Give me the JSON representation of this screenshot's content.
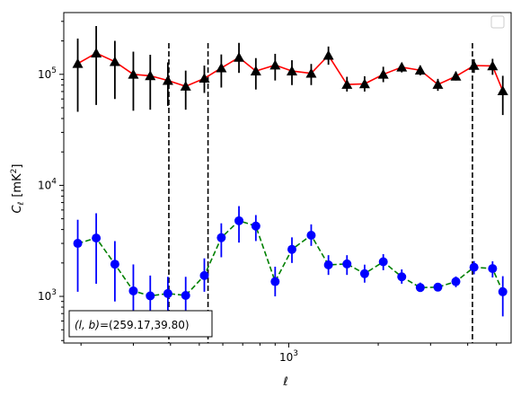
{
  "chart_data": {
    "type": "scatter",
    "xscale": "log",
    "yscale": "log",
    "xlim": [
      175,
      5600
    ],
    "ylim": [
      380,
      360000
    ],
    "xlabel": "ℓ",
    "ylabel": "Cℓ [mK²]",
    "ylabel_main": "C",
    "ylabel_sub": "ℓ",
    "ylabel_units": "[mK",
    "ylabel_sup": "2",
    "ylabel_close": "]",
    "x_tick_labels": [
      {
        "value": 1000,
        "base": "10",
        "exp": "3"
      }
    ],
    "y_tick_labels": [
      {
        "value": 1000,
        "base": "10",
        "exp": "3"
      },
      {
        "value": 10000,
        "base": "10",
        "exp": "4"
      },
      {
        "value": 100000,
        "base": "10",
        "exp": "5"
      }
    ],
    "grid": false,
    "legend": {
      "placement": "top-right",
      "entries": []
    },
    "annotation": {
      "text": "(l, b)=(259.17,39.80)",
      "lb": "(l, b)",
      "values": "=(259.17,39.80)",
      "placement": "bottom-left"
    },
    "vertical_lines": [
      {
        "x": 395,
        "color": "#000000",
        "style": "dashed"
      },
      {
        "x": 535,
        "color": "#000000",
        "style": "dashed"
      },
      {
        "x": 4150,
        "color": "#000000",
        "style": "dashed"
      }
    ],
    "series": [
      {
        "marker": "triangle",
        "color": "#000000",
        "line_color": "#ff0000",
        "line_style": "solid",
        "x": [
          195,
          225,
          260,
          300,
          342,
          392,
          450,
          520,
          593,
          680,
          775,
          900,
          1025,
          1190,
          1360,
          1570,
          1800,
          2080,
          2400,
          2770,
          3175,
          3650,
          4200,
          4850,
          5250
        ],
        "y": [
          125000,
          155000,
          130000,
          100000,
          97000,
          88000,
          78000,
          92000,
          114000,
          142000,
          107000,
          121000,
          107000,
          102000,
          148000,
          81000,
          82000,
          100000,
          116000,
          109000,
          81000,
          96000,
          120000,
          119000,
          71000
        ],
        "y_low": [
          46000,
          53000,
          60000,
          47000,
          48000,
          52000,
          48000,
          68000,
          76000,
          103000,
          73000,
          88000,
          80000,
          80000,
          122000,
          70000,
          70000,
          85000,
          104000,
          98000,
          71000,
          88000,
          103000,
          99000,
          43000
        ],
        "y_high": [
          210000,
          272000,
          200000,
          160000,
          150000,
          128000,
          108000,
          120000,
          151000,
          192000,
          140000,
          153000,
          134000,
          124000,
          178000,
          95000,
          96000,
          117000,
          127000,
          120000,
          91000,
          106000,
          137000,
          138000,
          97000
        ]
      },
      {
        "marker": "circle",
        "color": "#0000ff",
        "line_color": "#008000",
        "line_style": "dashed",
        "x": [
          195,
          225,
          260,
          300,
          342,
          392,
          450,
          520,
          593,
          680,
          775,
          900,
          1025,
          1190,
          1360,
          1570,
          1800,
          2080,
          2400,
          2770,
          3175,
          3650,
          4200,
          4850,
          5250
        ],
        "y": [
          3000,
          3350,
          1950,
          1120,
          1010,
          1060,
          1020,
          1540,
          3380,
          4800,
          4300,
          1360,
          2650,
          3550,
          1920,
          1960,
          1600,
          2050,
          1500,
          1200,
          1210,
          1360,
          1830,
          1780,
          1100
        ],
        "y_low": [
          1100,
          1300,
          900,
          600,
          560,
          460,
          660,
          1100,
          2250,
          3050,
          3150,
          1000,
          2000,
          2850,
          1560,
          1560,
          1330,
          1720,
          1300,
          1110,
          1110,
          1210,
          1580,
          1480,
          660
        ],
        "y_high": [
          4900,
          5600,
          3150,
          1940,
          1540,
          1500,
          1500,
          2200,
          4550,
          6500,
          5400,
          1850,
          3400,
          4450,
          2350,
          2350,
          1930,
          2400,
          1750,
          1330,
          1320,
          1510,
          2080,
          2070,
          1520
        ]
      }
    ]
  }
}
